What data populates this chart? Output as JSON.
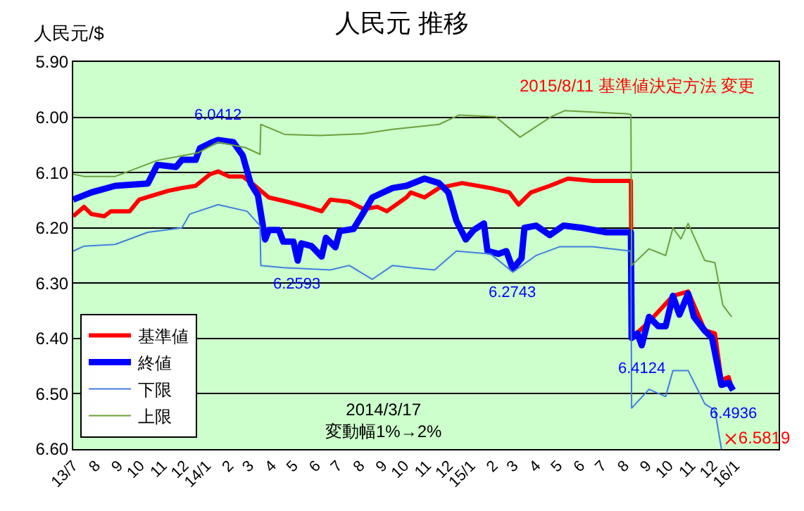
{
  "chart_data": {
    "type": "line",
    "title": "人民元 推移",
    "ylabel": "人民元/$",
    "annotations": [
      "2015/8/11 基準値決定方法 変更",
      "2014/3/17\n変動幅1%→2%",
      {
        "text": "6.0412",
        "x": "2014-01-17",
        "y": 6.0412
      },
      {
        "text": "6.2593",
        "x": "2014-05-07",
        "y": 6.2593
      },
      {
        "text": "6.2743",
        "x": "2015-02-28",
        "y": 6.2743
      },
      {
        "text": "6.4124",
        "x": "2015-08-25",
        "y": 6.4124
      },
      {
        "text": "6.4936",
        "x": "2015-12-29",
        "y": 6.4936
      }
    ],
    "xlim": [
      "2013-07-01",
      "2016-03-01"
    ],
    "xticks": [
      {
        "value": "2013-07-01",
        "label": "13/7"
      },
      {
        "value": "2013-08-01",
        "label": "8"
      },
      {
        "value": "2013-09-01",
        "label": "9"
      },
      {
        "value": "2013-10-01",
        "label": "10"
      },
      {
        "value": "2013-11-01",
        "label": "11"
      },
      {
        "value": "2013-12-01",
        "label": "12"
      },
      {
        "value": "2014-01-01",
        "label": "14/1"
      },
      {
        "value": "2014-02-01",
        "label": "2"
      },
      {
        "value": "2014-03-01",
        "label": "3"
      },
      {
        "value": "2014-04-01",
        "label": "4"
      },
      {
        "value": "2014-05-01",
        "label": "5"
      },
      {
        "value": "2014-06-01",
        "label": "6"
      },
      {
        "value": "2014-07-01",
        "label": "7"
      },
      {
        "value": "2014-08-01",
        "label": "8"
      },
      {
        "value": "2014-09-01",
        "label": "9"
      },
      {
        "value": "2014-10-01",
        "label": "10"
      },
      {
        "value": "2014-11-01",
        "label": "11"
      },
      {
        "value": "2014-12-01",
        "label": "12"
      },
      {
        "value": "2015-01-01",
        "label": "15/1"
      },
      {
        "value": "2015-02-01",
        "label": "2"
      },
      {
        "value": "2015-03-01",
        "label": "3"
      },
      {
        "value": "2015-04-01",
        "label": "4"
      },
      {
        "value": "2015-05-01",
        "label": "5"
      },
      {
        "value": "2015-06-01",
        "label": "6"
      },
      {
        "value": "2015-07-01",
        "label": "7"
      },
      {
        "value": "2015-08-01",
        "label": "8"
      },
      {
        "value": "2015-09-01",
        "label": "9"
      },
      {
        "value": "2015-10-01",
        "label": "10"
      },
      {
        "value": "2015-11-01",
        "label": "11"
      },
      {
        "value": "2015-12-01",
        "label": "12"
      },
      {
        "value": "2016-01-01",
        "label": "16/1"
      }
    ],
    "ylim": [
      6.6,
      5.9
    ],
    "yticks": [
      {
        "value": 5.9,
        "label": "5.90"
      },
      {
        "value": 6.0,
        "label": "6.00"
      },
      {
        "value": 6.1,
        "label": "6.10"
      },
      {
        "value": 6.2,
        "label": "6.20"
      },
      {
        "value": 6.3,
        "label": "6.30"
      },
      {
        "value": 6.4,
        "label": "6.40"
      },
      {
        "value": 6.5,
        "label": "6.50"
      },
      {
        "value": 6.6,
        "label": "6.60"
      }
    ],
    "grid": "y",
    "legend": "bottom left",
    "series": [
      {
        "name": "基準値",
        "color": "#ff0000",
        "x": [
          "2013-07-01",
          "2013-07-16",
          "2013-07-26",
          "2013-08-13",
          "2013-08-22",
          "2013-09-17",
          "2013-09-30",
          "2013-10-20",
          "2013-11-09",
          "2013-11-28",
          "2013-12-17",
          "2014-01-06",
          "2014-01-17",
          "2014-02-01",
          "2014-02-20",
          "2014-03-09",
          "2014-03-28",
          "2014-04-23",
          "2014-05-20",
          "2014-06-09",
          "2014-06-21",
          "2014-07-17",
          "2014-08-06",
          "2014-08-25",
          "2014-09-07",
          "2014-10-04",
          "2014-10-10",
          "2014-10-29",
          "2014-11-18",
          "2014-12-20",
          "2015-01-28",
          "2015-02-23",
          "2015-03-08",
          "2015-03-25",
          "2015-04-20",
          "2015-05-15",
          "2015-06-18",
          "2015-08-10",
          "2015-08-11",
          "2015-09-04",
          "2015-10-07",
          "2015-10-28",
          "2015-11-20",
          "2015-12-04",
          "2015-12-13",
          "2015-12-23",
          "2015-12-27"
        ],
        "values": [
          6.179,
          6.162,
          6.175,
          6.179,
          6.17,
          6.17,
          6.149,
          6.141,
          6.133,
          6.128,
          6.124,
          6.103,
          6.098,
          6.107,
          6.107,
          6.124,
          6.145,
          6.153,
          6.162,
          6.17,
          6.149,
          6.153,
          6.166,
          6.162,
          6.17,
          6.145,
          6.136,
          6.145,
          6.128,
          6.119,
          6.128,
          6.136,
          6.158,
          6.136,
          6.124,
          6.111,
          6.115,
          6.115,
          6.399,
          6.37,
          6.323,
          6.315,
          6.385,
          6.391,
          6.475,
          6.47,
          6.488
        ]
      },
      {
        "name": "終値",
        "color": "#0000ff",
        "x": [
          "2013-07-01",
          "2013-07-26",
          "2013-08-28",
          "2013-10-12",
          "2013-10-25",
          "2013-11-20",
          "2013-11-28",
          "2013-12-17",
          "2013-12-23",
          "2014-01-06",
          "2014-01-17",
          "2014-02-07",
          "2014-02-20",
          "2014-03-03",
          "2014-03-13",
          "2014-03-23",
          "2014-03-28",
          "2014-04-11",
          "2014-04-17",
          "2014-05-01",
          "2014-05-07",
          "2014-05-12",
          "2014-05-26",
          "2014-06-09",
          "2014-06-15",
          "2014-06-28",
          "2014-07-04",
          "2014-07-23",
          "2014-08-06",
          "2014-08-18",
          "2014-09-15",
          "2014-10-04",
          "2014-10-29",
          "2014-11-18",
          "2014-12-01",
          "2014-12-12",
          "2014-12-25",
          "2015-01-05",
          "2015-01-19",
          "2015-01-24",
          "2015-02-08",
          "2015-02-19",
          "2015-02-28",
          "2015-03-12",
          "2015-03-16",
          "2015-04-01",
          "2015-04-20",
          "2015-05-09",
          "2015-06-04",
          "2015-07-07",
          "2015-08-10",
          "2015-08-11",
          "2015-08-19",
          "2015-08-25",
          "2015-09-04",
          "2015-09-17",
          "2015-09-27",
          "2015-10-07",
          "2015-10-16",
          "2015-10-28",
          "2015-11-05",
          "2015-11-20",
          "2015-11-30",
          "2015-12-13",
          "2015-12-23",
          "2015-12-29"
        ],
        "values": [
          6.149,
          6.136,
          6.124,
          6.12,
          6.086,
          6.09,
          6.077,
          6.077,
          6.056,
          6.047,
          6.0412,
          6.045,
          6.069,
          6.12,
          6.141,
          6.221,
          6.204,
          6.204,
          6.225,
          6.225,
          6.2593,
          6.228,
          6.233,
          6.252,
          6.218,
          6.235,
          6.206,
          6.202,
          6.172,
          6.145,
          6.128,
          6.124,
          6.111,
          6.119,
          6.136,
          6.187,
          6.221,
          6.204,
          6.192,
          6.242,
          6.247,
          6.242,
          6.2743,
          6.255,
          6.2,
          6.196,
          6.213,
          6.196,
          6.2,
          6.208,
          6.208,
          6.399,
          6.391,
          6.4124,
          6.361,
          6.378,
          6.378,
          6.323,
          6.357,
          6.319,
          6.361,
          6.386,
          6.399,
          6.484,
          6.48,
          6.4936
        ]
      },
      {
        "name": "下限",
        "color": "#3f7fdf",
        "x": [
          "2013-07-01",
          "2013-07-16",
          "2013-08-28",
          "2013-10-12",
          "2013-11-28",
          "2013-12-09",
          "2014-01-17",
          "2014-02-26",
          "2014-03-16",
          "2014-03-17",
          "2014-04-17",
          "2014-06-21",
          "2014-07-17",
          "2014-08-18",
          "2014-09-15",
          "2014-10-10",
          "2014-11-12",
          "2014-12-12",
          "2015-01-28",
          "2015-02-28",
          "2015-04-01",
          "2015-05-04",
          "2015-06-18",
          "2015-08-10",
          "2015-08-11",
          "2015-09-04",
          "2015-09-27",
          "2015-10-07",
          "2015-10-28",
          "2015-11-20",
          "2015-12-04",
          "2015-12-13"
        ],
        "values": [
          6.242,
          6.233,
          6.23,
          6.208,
          6.2,
          6.175,
          6.158,
          6.17,
          6.196,
          6.268,
          6.272,
          6.276,
          6.268,
          6.293,
          6.268,
          6.272,
          6.276,
          6.242,
          6.247,
          6.28,
          6.25,
          6.234,
          6.234,
          6.242,
          6.526,
          6.492,
          6.505,
          6.458,
          6.458,
          6.518,
          6.53,
          6.6
        ]
      },
      {
        "name": "上限",
        "color": "#6f9f3f",
        "x": [
          "2013-07-01",
          "2013-07-16",
          "2013-08-28",
          "2013-09-27",
          "2013-10-25",
          "2013-12-21",
          "2014-01-17",
          "2014-02-24",
          "2014-03-16",
          "2014-03-17",
          "2014-04-19",
          "2014-06-07",
          "2014-08-03",
          "2014-09-15",
          "2014-11-18",
          "2014-12-16",
          "2015-02-04",
          "2015-03-10",
          "2015-04-22",
          "2015-05-11",
          "2015-08-06",
          "2015-08-10",
          "2015-08-11",
          "2015-09-04",
          "2015-09-27",
          "2015-10-07",
          "2015-10-18",
          "2015-10-28",
          "2015-11-20",
          "2015-12-04",
          "2015-12-15",
          "2015-12-27"
        ],
        "values": [
          6.103,
          6.107,
          6.107,
          6.092,
          6.078,
          6.064,
          6.045,
          6.055,
          6.067,
          6.013,
          6.031,
          6.033,
          6.03,
          6.022,
          6.013,
          5.996,
          5.999,
          6.036,
          5.999,
          5.988,
          5.994,
          5.995,
          6.268,
          6.238,
          6.25,
          6.2,
          6.22,
          6.192,
          6.259,
          6.263,
          6.34,
          6.361
        ]
      },
      {
        "type": "scatter",
        "marker": "cross",
        "color": "#ff0000",
        "x": [
          "2015-12-26"
        ],
        "values": [
          6.5819
        ],
        "value_labels": [
          "6.5819"
        ]
      }
    ]
  }
}
